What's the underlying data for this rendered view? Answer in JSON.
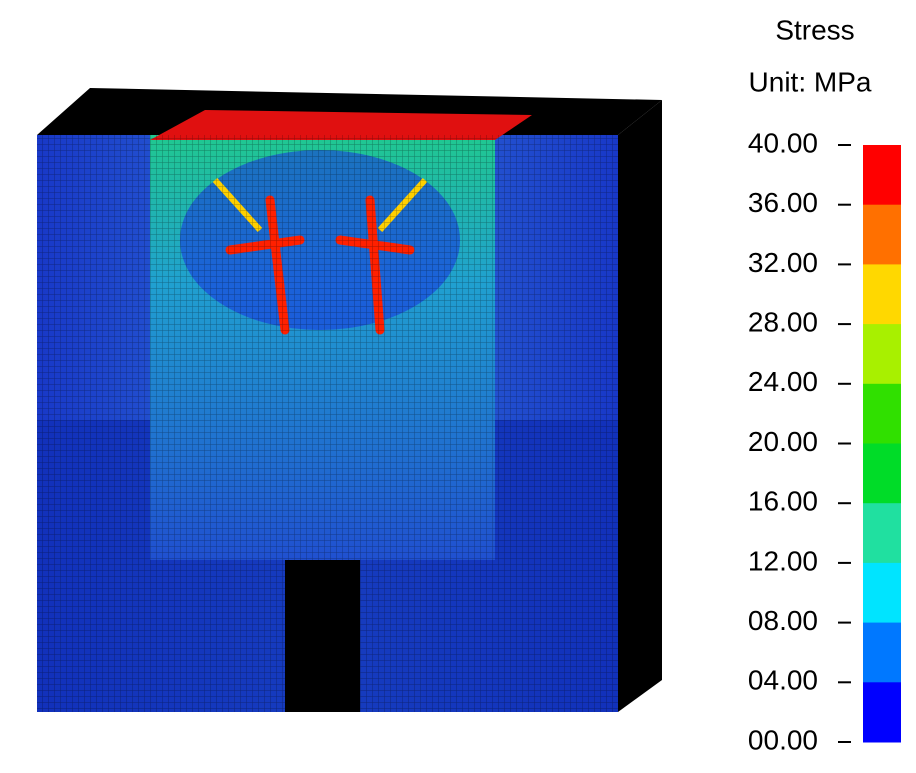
{
  "legend": {
    "title": "Stress",
    "unit": "Unit: MPa",
    "ticks": [
      "40.00",
      "36.00",
      "32.00",
      "28.00",
      "24.00",
      "20.00",
      "16.00",
      "12.00",
      "08.00",
      "04.00",
      "00.00"
    ],
    "colors": [
      "#ff0000",
      "#ff7000",
      "#ffd800",
      "#a8f000",
      "#30e000",
      "#00dc28",
      "#20e0a0",
      "#00e4ff",
      "#0078ff",
      "#0000ff"
    ]
  }
}
